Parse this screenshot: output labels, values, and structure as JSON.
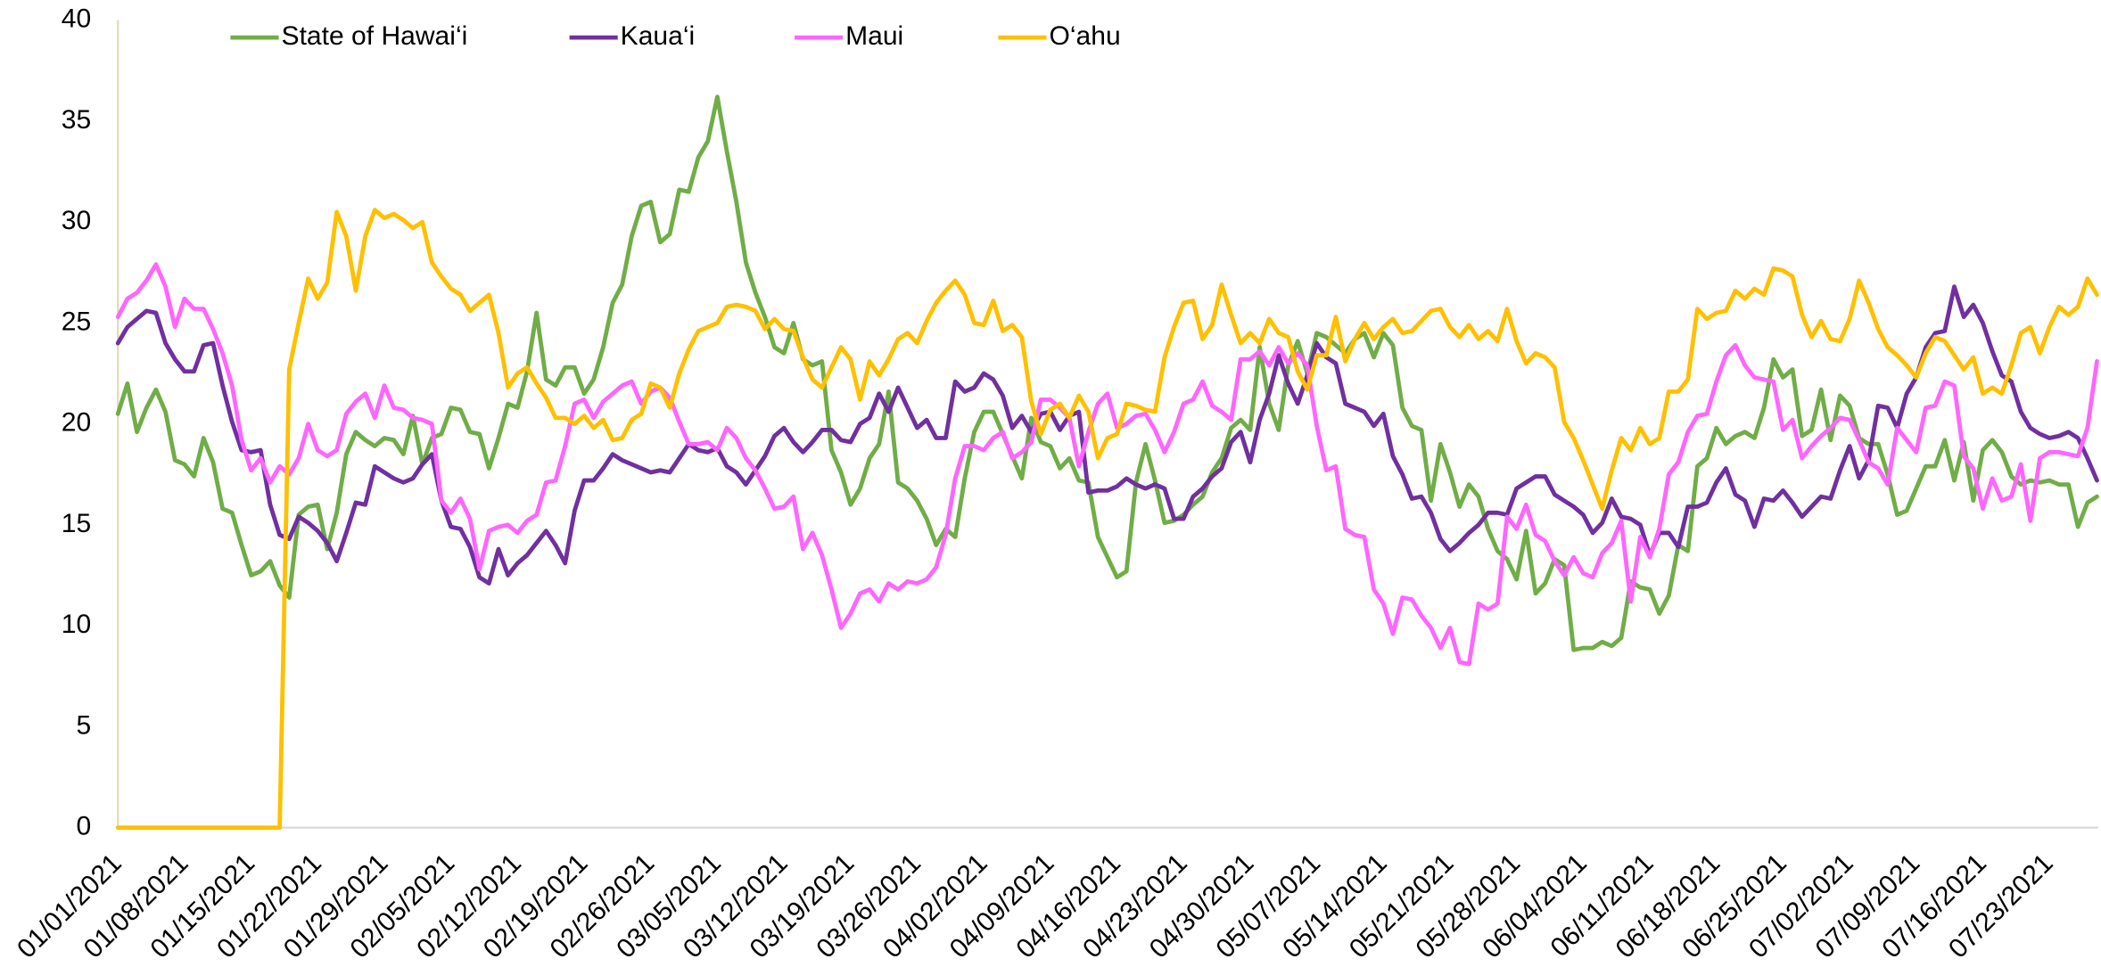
{
  "chart_data": {
    "type": "line",
    "legend": "top",
    "ylim": [
      0,
      40
    ],
    "yticks": [
      0,
      5,
      10,
      15,
      20,
      25,
      30,
      35,
      40
    ],
    "grid": false,
    "categories": [
      "01/01/2021",
      null,
      null,
      null,
      null,
      null,
      null,
      "01/08/2021",
      null,
      null,
      null,
      null,
      null,
      null,
      "01/15/2021",
      null,
      null,
      null,
      null,
      null,
      null,
      "01/22/2021",
      null,
      null,
      null,
      null,
      null,
      null,
      "01/29/2021",
      null,
      null,
      null,
      null,
      null,
      null,
      "02/05/2021",
      null,
      null,
      null,
      null,
      null,
      null,
      "02/12/2021",
      null,
      null,
      null,
      null,
      null,
      null,
      "02/19/2021",
      null,
      null,
      null,
      null,
      null,
      null,
      "02/26/2021",
      null,
      null,
      null,
      null,
      null,
      null,
      "03/05/2021",
      null,
      null,
      null,
      null,
      null,
      null,
      "03/12/2021",
      null,
      null,
      null,
      null,
      null,
      null,
      "03/19/2021",
      null,
      null,
      null,
      null,
      null,
      null,
      "03/26/2021",
      null,
      null,
      null,
      null,
      null,
      null,
      "04/02/2021",
      null,
      null,
      null,
      null,
      null,
      null,
      "04/09/2021",
      null,
      null,
      null,
      null,
      null,
      null,
      "04/16/2021",
      null,
      null,
      null,
      null,
      null,
      null,
      "04/23/2021",
      null,
      null,
      null,
      null,
      null,
      null,
      "04/30/2021",
      null,
      null,
      null,
      null,
      null,
      null,
      "05/07/2021",
      null,
      null,
      null,
      null,
      null,
      null,
      "05/14/2021",
      null,
      null,
      null,
      null,
      null,
      null,
      "05/21/2021",
      null,
      null,
      null,
      null,
      null,
      null,
      "05/28/2021",
      null,
      null,
      null,
      null,
      null,
      null,
      "06/04/2021",
      null,
      null,
      null,
      null,
      null,
      null,
      "06/11/2021",
      null,
      null,
      null,
      null,
      null,
      null,
      "06/18/2021",
      null,
      null,
      null,
      null,
      null,
      null,
      "06/25/2021",
      null,
      null,
      null,
      null,
      null,
      null,
      "07/02/2021",
      null,
      null,
      null,
      null,
      null,
      null,
      "07/09/2021",
      null,
      null,
      null,
      null,
      null,
      null,
      "07/16/2021",
      null,
      null,
      null,
      null,
      null,
      null,
      "07/23/2021",
      null,
      null,
      null,
      null,
      null
    ],
    "series": [
      {
        "name": "State of Hawai‘i",
        "color": "#70ad47",
        "values": [
          20.5,
          22,
          19.6,
          20.8,
          21.7,
          20.6,
          18.2,
          18,
          17.4,
          19.3,
          18.1,
          15.8,
          15.6,
          14,
          12.5,
          12.7,
          13.2,
          12,
          11.4,
          15.5,
          15.9,
          16,
          13.8,
          15.6,
          18.5,
          19.6,
          19.2,
          18.9,
          19.3,
          19.2,
          18.5,
          20.4,
          18,
          19.3,
          19.5,
          20.8,
          20.7,
          19.6,
          19.5,
          17.8,
          19.3,
          21,
          20.8,
          22.6,
          25.5,
          22.2,
          21.9,
          22.8,
          22.8,
          21.5,
          22.2,
          23.8,
          26,
          26.9,
          29.3,
          30.8,
          31,
          29,
          29.4,
          31.6,
          31.5,
          33.2,
          34,
          36.2,
          33.5,
          31,
          28,
          26.5,
          25.3,
          23.8,
          23.5,
          25,
          23.2,
          22.9,
          23.1,
          18.7,
          17.6,
          16,
          16.8,
          18.3,
          19,
          21.6,
          17.1,
          16.8,
          16.2,
          15.3,
          14,
          14.8,
          14.4,
          17.3,
          19.6,
          20.6,
          20.6,
          19.5,
          18.4,
          17.3,
          20.3,
          19.1,
          18.9,
          17.8,
          18.3,
          17.2,
          17.1,
          14.4,
          13.4,
          12.4,
          12.7,
          17.1,
          19,
          17.2,
          15.1,
          15.2,
          15.5,
          16,
          16.4,
          17.6,
          18.3,
          19.8,
          20.2,
          19.7,
          23.8,
          21,
          19.7,
          22.9,
          24.1,
          22.5,
          24.5,
          24.3,
          23.9,
          23.5,
          24.2,
          24.5,
          23.3,
          24.5,
          23.9,
          20.8,
          19.9,
          19.7,
          16.2,
          19,
          17.6,
          15.9,
          17,
          16.4,
          14.8,
          13.7,
          13.3,
          12.3,
          14.7,
          11.6,
          12.1,
          13.3,
          13,
          8.8,
          8.9,
          8.9,
          9.2,
          9,
          9.4,
          12.2,
          11.9,
          11.8,
          10.6,
          11.5,
          14,
          13.7,
          17.9,
          18.3,
          19.8,
          19,
          19.4,
          19.6,
          19.3,
          20.8,
          23.2,
          22.3,
          22.7,
          19.4,
          19.7,
          21.7,
          19.2,
          21.4,
          20.9,
          19.3,
          19,
          19,
          17.5,
          15.5,
          15.7,
          16.8,
          17.9,
          17.9,
          19.2,
          17.2,
          19.1,
          16.2,
          18.7,
          19.2,
          18.6,
          17.4,
          17,
          17.2,
          17.1,
          17.2,
          17,
          17,
          14.9,
          16.1,
          16.4
        ]
      },
      {
        "name": "Kaua‘i",
        "color": "#7030a0",
        "values": [
          24,
          24.8,
          25.2,
          25.6,
          25.5,
          24,
          23.2,
          22.6,
          22.6,
          23.9,
          24,
          21.9,
          20.1,
          18.7,
          18.6,
          18.7,
          16,
          14.5,
          14.3,
          15.4,
          15.1,
          14.7,
          14.1,
          13.2,
          14.6,
          16.1,
          16,
          17.9,
          17.6,
          17.3,
          17.1,
          17.3,
          18,
          18.5,
          16.2,
          14.9,
          14.8,
          13.9,
          12.4,
          12.1,
          13.8,
          12.5,
          13.1,
          13.5,
          14.1,
          14.7,
          14,
          13.1,
          15.7,
          17.2,
          17.2,
          17.8,
          18.5,
          18.2,
          18,
          17.8,
          17.6,
          17.7,
          17.6,
          18.3,
          19,
          18.7,
          18.6,
          18.8,
          17.9,
          17.6,
          17,
          17.7,
          18.4,
          19.4,
          19.8,
          19.1,
          18.6,
          19.1,
          19.7,
          19.7,
          19.2,
          19.1,
          20,
          20.3,
          21.5,
          20.6,
          21.8,
          20.8,
          19.8,
          20.2,
          19.3,
          19.3,
          22.1,
          21.6,
          21.8,
          22.5,
          22.2,
          21.4,
          19.8,
          20.4,
          19.6,
          20.5,
          20.6,
          19.7,
          20.4,
          20.6,
          16.6,
          16.7,
          16.7,
          16.9,
          17.3,
          17,
          16.8,
          17,
          16.8,
          15.3,
          15.3,
          16.4,
          16.8,
          17.4,
          17.8,
          19.1,
          19.6,
          18.1,
          20.2,
          21.5,
          23.4,
          22,
          21,
          22.4,
          24,
          23.3,
          23,
          21,
          20.8,
          20.6,
          19.9,
          20.5,
          18.4,
          17.5,
          16.3,
          16.4,
          15.6,
          14.3,
          13.7,
          14.1,
          14.6,
          15,
          15.6,
          15.6,
          15.5,
          16.8,
          17.1,
          17.4,
          17.4,
          16.5,
          16.2,
          15.9,
          15.5,
          14.6,
          15.1,
          16.3,
          15.4,
          15.3,
          15,
          13.5,
          14.6,
          14.6,
          13.9,
          15.9,
          15.9,
          16.1,
          17.1,
          17.8,
          16.5,
          16.2,
          14.9,
          16.3,
          16.2,
          16.7,
          16.1,
          15.4,
          15.9,
          16.4,
          16.3,
          17.7,
          18.9,
          17.3,
          18.2,
          20.9,
          20.8,
          19.8,
          21.5,
          22.3,
          23.8,
          24.5,
          24.6,
          26.8,
          25.3,
          25.9,
          25,
          23.6,
          22.4,
          22.1,
          20.6,
          19.8,
          19.5,
          19.3,
          19.4,
          19.6,
          19.3,
          18.3,
          17.2
        ]
      },
      {
        "name": "Maui",
        "color": "#ff66ff",
        "values": [
          25.3,
          26.2,
          26.5,
          27.1,
          27.9,
          26.8,
          24.8,
          26.2,
          25.7,
          25.7,
          24.7,
          23.5,
          21.9,
          19.2,
          17.7,
          18.3,
          17.1,
          17.9,
          17.5,
          18.3,
          20,
          18.7,
          18.4,
          18.7,
          20.5,
          21.1,
          21.5,
          20.3,
          21.9,
          20.8,
          20.7,
          20.3,
          20.2,
          20,
          16.2,
          15.6,
          16.3,
          15.3,
          12.8,
          14.7,
          14.9,
          15,
          14.6,
          15.2,
          15.5,
          17.1,
          17.2,
          18.9,
          21,
          21.2,
          20.3,
          21.1,
          21.5,
          21.9,
          22.1,
          21,
          21.6,
          21.8,
          21.3,
          20.1,
          19,
          19,
          19.1,
          18.7,
          19.8,
          19.3,
          18.3,
          17.7,
          16.8,
          15.8,
          15.9,
          16.4,
          13.8,
          14.6,
          13.5,
          11.8,
          9.9,
          10.6,
          11.6,
          11.8,
          11.2,
          12.1,
          11.8,
          12.2,
          12.1,
          12.3,
          12.9,
          14.5,
          17.3,
          18.9,
          18.9,
          18.7,
          19.3,
          19.6,
          18.3,
          18.6,
          19.1,
          21.2,
          21.2,
          20.8,
          20.3,
          17.9,
          19.6,
          21,
          21.5,
          19.8,
          20,
          20.4,
          20.5,
          19.7,
          18.6,
          19.6,
          21,
          21.2,
          22.1,
          20.9,
          20.6,
          20.2,
          23.2,
          23.2,
          23.6,
          22.9,
          23.8,
          23,
          23.5,
          22.9,
          19.9,
          17.7,
          17.9,
          14.8,
          14.5,
          14.4,
          11.8,
          11.1,
          9.6,
          11.4,
          11.3,
          10.5,
          9.9,
          8.9,
          9.9,
          8.2,
          8.1,
          11.1,
          10.8,
          11.1,
          15.4,
          14.8,
          16,
          14.5,
          14.2,
          13.2,
          12.5,
          13.4,
          12.6,
          12.4,
          13.6,
          14.1,
          15.2,
          11.2,
          14.4,
          13.4,
          14.8,
          17.5,
          18.1,
          19.6,
          20.4,
          20.5,
          22.1,
          23.4,
          23.9,
          22.9,
          22.3,
          22.2,
          22.1,
          19.7,
          20.2,
          18.3,
          18.9,
          19.4,
          19.8,
          20.3,
          20.2,
          19.2,
          18.1,
          17.8,
          17,
          19.8,
          19.2,
          18.6,
          20.8,
          20.9,
          22.1,
          21.9,
          18.4,
          17.8,
          15.8,
          17.3,
          16.2,
          16.4,
          18,
          15.2,
          18.3,
          18.6,
          18.6,
          18.5,
          18.4,
          19.8,
          23.1
        ]
      },
      {
        "name": "O‘ahu",
        "color": "#ffc000",
        "values": [
          0,
          0,
          0,
          0,
          0,
          0,
          0,
          0,
          0,
          0,
          0,
          0,
          0,
          0,
          0,
          0,
          0,
          0,
          22.7,
          25,
          27.2,
          26.2,
          27,
          30.5,
          29.3,
          26.6,
          29.3,
          30.6,
          30.2,
          30.4,
          30.1,
          29.7,
          30,
          28,
          27.3,
          26.7,
          26.4,
          25.6,
          26,
          26.4,
          24.5,
          21.8,
          22.5,
          22.8,
          22,
          21.3,
          20.3,
          20.3,
          20,
          20.4,
          19.8,
          20.2,
          19.2,
          19.3,
          20.2,
          20.5,
          22,
          21.8,
          20.8,
          22.5,
          23.7,
          24.6,
          24.8,
          25,
          25.8,
          25.9,
          25.8,
          25.6,
          24.7,
          25.2,
          24.7,
          24.6,
          23.3,
          22.2,
          21.8,
          22.8,
          23.8,
          23.2,
          21.2,
          23.1,
          22.4,
          23.2,
          24.2,
          24.5,
          24,
          25.1,
          26,
          26.6,
          27.1,
          26.4,
          25,
          24.9,
          26.1,
          24.6,
          24.9,
          24.3,
          21.1,
          19.5,
          20.7,
          21,
          20.3,
          21.4,
          20.6,
          18.3,
          19.3,
          19.5,
          21,
          20.9,
          20.7,
          20.6,
          23.3,
          24.8,
          26,
          26.1,
          24.2,
          24.9,
          26.9,
          25.4,
          24,
          24.5,
          24,
          25.2,
          24.5,
          24.3,
          22.6,
          21.7,
          23.4,
          23.4,
          25.3,
          23.1,
          24.2,
          25,
          24.2,
          24.8,
          25.2,
          24.5,
          24.6,
          25.1,
          25.6,
          25.7,
          24.8,
          24.3,
          24.9,
          24.2,
          24.6,
          24.1,
          25.7,
          24.1,
          23,
          23.5,
          23.3,
          22.8,
          20.1,
          19.3,
          18.2,
          17,
          15.8,
          17.7,
          19.3,
          18.7,
          19.8,
          19,
          19.3,
          21.6,
          21.6,
          22.2,
          25.7,
          25.2,
          25.5,
          25.6,
          26.6,
          26.2,
          26.7,
          26.4,
          27.7,
          27.6,
          27.3,
          25.4,
          24.3,
          25.1,
          24.2,
          24.1,
          25.2,
          27.1,
          26,
          24.7,
          23.8,
          23.4,
          22.9,
          22.3,
          23.5,
          24.3,
          24.1,
          23.4,
          22.7,
          23.3,
          21.5,
          21.8,
          21.5,
          22.9,
          24.5,
          24.8,
          23.5,
          24.8,
          25.8,
          25.4,
          25.8,
          27.2,
          26.4
        ]
      }
    ]
  }
}
